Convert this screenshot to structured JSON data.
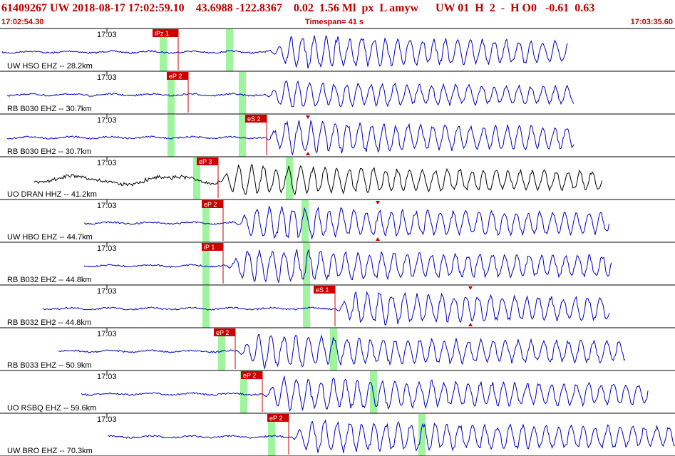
{
  "header": {
    "event_id": "61409267",
    "network": "UW",
    "datetime": "2018-08-17 17:02:59.10",
    "lat": "43.6988",
    "lon": "-122.8367",
    "depth": "0.02",
    "magnitude": "1.56",
    "mag_type": "Ml",
    "flags": "px  L amyw",
    "source": "UW 01  H  2  -  H O0",
    "val1": "-0.61",
    "val2": "0.63",
    "start_time": "17:02:54.30",
    "timespan_label": "Timespan=",
    "timespan_value": "41 s",
    "end_time": "17:03:35.60"
  },
  "time_tick_label": "17:03",
  "colors": {
    "header": "#c00000",
    "trace_blue": "#0000c0",
    "trace_black": "#000000",
    "pick": "#cc0000",
    "window": "#9ef59e"
  },
  "traces": [
    {
      "label": "UW HSO EHZ -- 28.2km",
      "pick": "iPz 1",
      "color": "blue"
    },
    {
      "label": "RB B030 EHZ -- 30.7km",
      "pick": "eP 2",
      "color": "blue"
    },
    {
      "label": "RB B030 EH2 -- 30.7km",
      "pick": "eS 2",
      "color": "blue"
    },
    {
      "label": "UO DRAN HHZ -- 41.2km",
      "pick": "eP 3",
      "color": "black"
    },
    {
      "label": "UW HBO EHZ -- 44.7km",
      "pick": "eP 2",
      "color": "blue"
    },
    {
      "label": "RB B032 EHZ -- 44.8km",
      "pick": "iP 1",
      "color": "blue"
    },
    {
      "label": "RB B032 EH2 -- 44.8km",
      "pick": "eS 1",
      "color": "blue"
    },
    {
      "label": "RB B033 EHZ -- 50.9km",
      "pick": "eP 2",
      "color": "blue"
    },
    {
      "label": "UO RSBQ EHZ -- 59.6km",
      "pick": "eP 2",
      "color": "blue"
    },
    {
      "label": "UW BRO EHZ -- 70.3km",
      "pick": "eP 2",
      "color": "blue"
    }
  ]
}
